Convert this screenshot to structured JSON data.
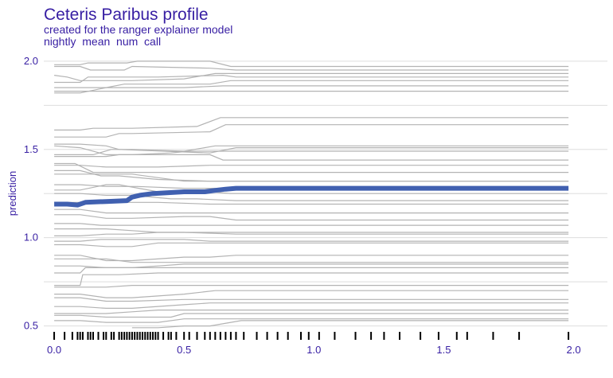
{
  "colors": {
    "title": "#371ea3",
    "grid": "#dddddd",
    "ice": "#b3b3b3",
    "mean": "#4060b0",
    "rug": "#000000"
  },
  "chart_data": {
    "type": "line",
    "title": "Ceteris Paribus profile",
    "subtitle": "created for the ranger explainer model",
    "variable": "nightly  mean  num  call",
    "xlabel": "",
    "ylabel": "prediction",
    "xlim": [
      -0.04,
      2.13
    ],
    "ylim": [
      0.48,
      2.04
    ],
    "x_ticks": [
      0.0,
      0.5,
      1.0,
      1.5,
      2.0
    ],
    "x_tick_labels": [
      "0.0",
      "0.5",
      "1.0",
      "1.5",
      "2.0"
    ],
    "y_ticks": [
      0.5,
      1.0,
      1.5,
      2.0
    ],
    "y_tick_labels": [
      "0.5",
      "1.0",
      "1.5",
      "2.0"
    ],
    "grid": true,
    "legend": "none",
    "highlighted_series": {
      "x": [
        0.0,
        0.05,
        0.09,
        0.12,
        0.2,
        0.28,
        0.3,
        0.33,
        0.38,
        0.44,
        0.5,
        0.58,
        0.63,
        0.66,
        0.7,
        0.75,
        1.0,
        1.5,
        1.98
      ],
      "y": [
        1.19,
        1.19,
        1.185,
        1.2,
        1.205,
        1.21,
        1.23,
        1.24,
        1.25,
        1.255,
        1.26,
        1.26,
        1.27,
        1.275,
        1.28,
        1.28,
        1.28,
        1.28,
        1.28
      ]
    },
    "profiles": [
      {
        "x": [
          0,
          0.1,
          0.13,
          0.28,
          0.32,
          0.6,
          0.68,
          0.73,
          1.98
        ],
        "y": [
          1.98,
          1.98,
          1.99,
          1.99,
          2.0,
          2.0,
          1.97,
          1.97,
          1.97
        ]
      },
      {
        "x": [
          0,
          0.1,
          0.14,
          0.27,
          0.3,
          0.6,
          0.7,
          1.98
        ],
        "y": [
          1.97,
          1.97,
          1.95,
          1.95,
          1.97,
          1.96,
          1.95,
          1.95
        ]
      },
      {
        "x": [
          0,
          0.05,
          0.1,
          0.14,
          0.3,
          0.5,
          0.62,
          0.68,
          1.98
        ],
        "y": [
          1.92,
          1.91,
          1.89,
          1.89,
          1.89,
          1.9,
          1.93,
          1.93,
          1.93
        ]
      },
      {
        "x": [
          0,
          0.1,
          0.13,
          0.4,
          0.65,
          0.7,
          1.98
        ],
        "y": [
          1.88,
          1.88,
          1.91,
          1.91,
          1.92,
          1.91,
          1.91
        ]
      },
      {
        "x": [
          0,
          0.2,
          0.27,
          0.6,
          0.68,
          1.98
        ],
        "y": [
          1.85,
          1.85,
          1.87,
          1.87,
          1.89,
          1.89
        ]
      },
      {
        "x": [
          0,
          0.1,
          0.2,
          0.5,
          0.65,
          0.7,
          1.98
        ],
        "y": [
          1.82,
          1.82,
          1.85,
          1.85,
          1.86,
          1.86,
          1.86
        ]
      },
      {
        "x": [
          0,
          0.3,
          0.6,
          0.65,
          1.98
        ],
        "y": [
          1.83,
          1.83,
          1.83,
          1.83,
          1.83
        ]
      },
      {
        "x": [
          0,
          0.1,
          0.15,
          0.3,
          0.55,
          0.64,
          1.98
        ],
        "y": [
          1.61,
          1.61,
          1.62,
          1.62,
          1.63,
          1.68,
          1.68
        ]
      },
      {
        "x": [
          0,
          0.2,
          0.25,
          0.3,
          0.6,
          0.66,
          1.98
        ],
        "y": [
          1.57,
          1.57,
          1.59,
          1.59,
          1.6,
          1.64,
          1.64
        ]
      },
      {
        "x": [
          0,
          0.1,
          0.2,
          0.25,
          0.6,
          0.7,
          1.98
        ],
        "y": [
          1.53,
          1.53,
          1.52,
          1.5,
          1.48,
          1.51,
          1.51
        ]
      },
      {
        "x": [
          0,
          0.1,
          0.2,
          0.3,
          0.6,
          0.65,
          0.7,
          1.98
        ],
        "y": [
          1.52,
          1.51,
          1.47,
          1.47,
          1.47,
          1.44,
          1.44,
          1.44
        ]
      },
      {
        "x": [
          0,
          0.15,
          0.22,
          0.3,
          0.5,
          0.62,
          0.68,
          1.98
        ],
        "y": [
          1.47,
          1.47,
          1.5,
          1.5,
          1.49,
          1.52,
          1.52,
          1.52
        ]
      },
      {
        "x": [
          0,
          0.1,
          0.2,
          0.25,
          0.3,
          0.45,
          0.52,
          1.98
        ],
        "y": [
          1.46,
          1.46,
          1.46,
          1.47,
          1.47,
          1.48,
          1.49,
          1.49
        ]
      },
      {
        "x": [
          0,
          0.1,
          0.2,
          0.4,
          0.6,
          0.7,
          1.98
        ],
        "y": [
          1.41,
          1.41,
          1.4,
          1.4,
          1.41,
          1.41,
          1.41
        ]
      },
      {
        "x": [
          0,
          0.08,
          0.15,
          0.2,
          0.3,
          0.6,
          1.98
        ],
        "y": [
          1.42,
          1.42,
          1.37,
          1.37,
          1.37,
          1.37,
          1.37
        ]
      },
      {
        "x": [
          0,
          0.1,
          0.18,
          0.25,
          0.4,
          0.6,
          0.7,
          1.98
        ],
        "y": [
          1.38,
          1.38,
          1.35,
          1.35,
          1.33,
          1.32,
          1.32,
          1.32
        ]
      },
      {
        "x": [
          0,
          0.1,
          0.2,
          0.3,
          0.5,
          0.68,
          1.98
        ],
        "y": [
          1.36,
          1.36,
          1.36,
          1.36,
          1.32,
          1.32,
          1.32
        ]
      },
      {
        "x": [
          0,
          0.1,
          0.2,
          0.32,
          0.5,
          0.65,
          1.98
        ],
        "y": [
          1.3,
          1.3,
          1.29,
          1.29,
          1.28,
          1.28,
          1.28
        ]
      },
      {
        "x": [
          0,
          0.1,
          0.2,
          0.25,
          0.4,
          0.6,
          0.68,
          1.98
        ],
        "y": [
          1.27,
          1.27,
          1.3,
          1.3,
          1.26,
          1.26,
          1.25,
          1.25
        ]
      },
      {
        "x": [
          0,
          0.1,
          0.2,
          0.3,
          0.45,
          0.55,
          0.7,
          1.98
        ],
        "y": [
          1.25,
          1.25,
          1.24,
          1.24,
          1.22,
          1.22,
          1.21,
          1.21
        ]
      },
      {
        "x": [
          0,
          0.2,
          0.3,
          0.4,
          0.6,
          0.7,
          1.98
        ],
        "y": [
          1.2,
          1.2,
          1.2,
          1.2,
          1.19,
          1.19,
          1.19
        ]
      },
      {
        "x": [
          0,
          0.1,
          0.2,
          0.3,
          0.5,
          0.65,
          1.98
        ],
        "y": [
          1.16,
          1.16,
          1.14,
          1.14,
          1.14,
          1.14,
          1.14
        ]
      },
      {
        "x": [
          0,
          0.1,
          0.2,
          0.3,
          0.5,
          0.6,
          0.7,
          1.98
        ],
        "y": [
          1.13,
          1.13,
          1.11,
          1.11,
          1.12,
          1.12,
          1.1,
          1.1
        ]
      },
      {
        "x": [
          0,
          0.1,
          0.18,
          0.3,
          0.5,
          0.6,
          1.98
        ],
        "y": [
          1.08,
          1.08,
          1.07,
          1.07,
          1.07,
          1.07,
          1.07
        ]
      },
      {
        "x": [
          0,
          0.2,
          0.3,
          0.4,
          0.5,
          0.7,
          1.98
        ],
        "y": [
          1.05,
          1.05,
          1.04,
          1.03,
          1.03,
          1.02,
          1.02
        ]
      },
      {
        "x": [
          0,
          0.1,
          0.2,
          0.3,
          0.4,
          0.6,
          1.98
        ],
        "y": [
          1.01,
          1.01,
          1.02,
          1.02,
          1.03,
          1.03,
          1.03
        ]
      },
      {
        "x": [
          0,
          0.1,
          0.18,
          0.3,
          0.5,
          0.6,
          0.7,
          1.98
        ],
        "y": [
          0.98,
          0.98,
          0.99,
          0.99,
          0.99,
          0.98,
          0.98,
          0.98
        ]
      },
      {
        "x": [
          0,
          0.1,
          0.2,
          0.3,
          0.4,
          0.5,
          0.6,
          1.98
        ],
        "y": [
          0.96,
          0.96,
          0.95,
          0.95,
          0.97,
          0.97,
          0.97,
          0.97
        ]
      },
      {
        "x": [
          0,
          0.1,
          0.2,
          0.3,
          0.5,
          0.6,
          0.7,
          1.98
        ],
        "y": [
          0.9,
          0.9,
          0.87,
          0.87,
          0.89,
          0.89,
          0.9,
          0.9
        ]
      },
      {
        "x": [
          0,
          0.1,
          0.2,
          0.3,
          0.5,
          0.6,
          1.98
        ],
        "y": [
          0.88,
          0.88,
          0.88,
          0.86,
          0.86,
          0.86,
          0.86
        ]
      },
      {
        "x": [
          0,
          0.1,
          0.2,
          0.3,
          0.4,
          0.5,
          0.6,
          1.98
        ],
        "y": [
          0.84,
          0.84,
          0.83,
          0.83,
          0.84,
          0.85,
          0.85,
          0.85
        ]
      },
      {
        "x": [
          0,
          0.1,
          0.12,
          0.3,
          0.5,
          0.7,
          1.98
        ],
        "y": [
          0.8,
          0.8,
          0.83,
          0.83,
          0.83,
          0.83,
          0.83
        ]
      },
      {
        "x": [
          0,
          0.1,
          0.11,
          0.25,
          0.4,
          0.6,
          0.7,
          1.98
        ],
        "y": [
          0.73,
          0.73,
          0.79,
          0.79,
          0.8,
          0.8,
          0.8,
          0.8
        ]
      },
      {
        "x": [
          0,
          0.1,
          0.2,
          0.3,
          0.4,
          0.6,
          1.98
        ],
        "y": [
          0.72,
          0.72,
          0.72,
          0.73,
          0.73,
          0.73,
          0.73
        ]
      },
      {
        "x": [
          0,
          0.1,
          0.2,
          0.3,
          0.5,
          0.62,
          0.7,
          1.98
        ],
        "y": [
          0.68,
          0.68,
          0.66,
          0.66,
          0.68,
          0.7,
          0.7,
          0.7
        ]
      },
      {
        "x": [
          0,
          0.1,
          0.2,
          0.3,
          0.5,
          0.6,
          1.98
        ],
        "y": [
          0.66,
          0.66,
          0.64,
          0.64,
          0.65,
          0.65,
          0.65
        ]
      },
      {
        "x": [
          0,
          0.1,
          0.2,
          0.3,
          0.5,
          0.6,
          0.7,
          1.98
        ],
        "y": [
          0.61,
          0.61,
          0.6,
          0.6,
          0.62,
          0.63,
          0.63,
          0.63
        ]
      },
      {
        "x": [
          0,
          0.2,
          0.3,
          0.4,
          0.5,
          0.6,
          1.98
        ],
        "y": [
          0.57,
          0.57,
          0.58,
          0.59,
          0.59,
          0.59,
          0.59
        ]
      },
      {
        "x": [
          0,
          0.1,
          0.2,
          0.3,
          0.45,
          0.5,
          0.6,
          1.98
        ],
        "y": [
          0.56,
          0.56,
          0.55,
          0.55,
          0.55,
          0.57,
          0.57,
          0.57
        ]
      },
      {
        "x": [
          0,
          0.1,
          0.2,
          0.3,
          0.4,
          0.5,
          0.6,
          1.98
        ],
        "y": [
          0.53,
          0.53,
          0.52,
          0.52,
          0.52,
          0.54,
          0.54,
          0.54
        ]
      },
      {
        "x": [
          0.3,
          0.4,
          0.5,
          0.6,
          0.68,
          0.72,
          1.98
        ],
        "y": [
          0.49,
          0.49,
          0.5,
          0.5,
          0.52,
          0.53,
          0.53
        ]
      }
    ],
    "rug": [
      0.0,
      0.04,
      0.07,
      0.09,
      0.1,
      0.11,
      0.13,
      0.14,
      0.15,
      0.17,
      0.19,
      0.2,
      0.22,
      0.23,
      0.25,
      0.26,
      0.27,
      0.28,
      0.29,
      0.3,
      0.31,
      0.32,
      0.33,
      0.34,
      0.35,
      0.36,
      0.37,
      0.38,
      0.39,
      0.4,
      0.42,
      0.44,
      0.45,
      0.47,
      0.5,
      0.52,
      0.55,
      0.58,
      0.6,
      0.62,
      0.64,
      0.66,
      0.68,
      0.7,
      0.73,
      0.78,
      0.82,
      0.86,
      0.9,
      0.95,
      0.98,
      1.02,
      1.08,
      1.16,
      1.22,
      1.27,
      1.33,
      1.41,
      1.48,
      1.55,
      1.59,
      1.69,
      1.79,
      1.98
    ]
  }
}
